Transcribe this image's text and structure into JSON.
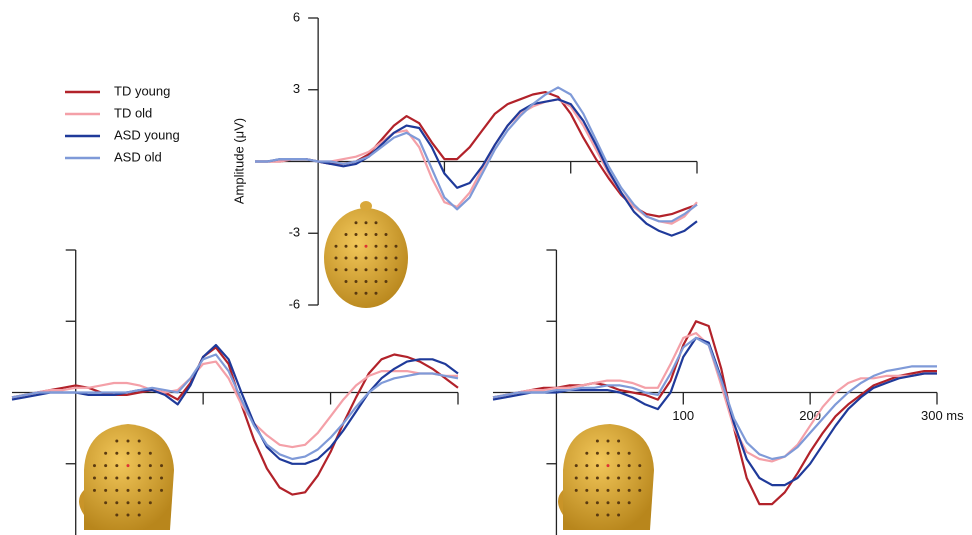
{
  "chart_data": [
    {
      "type": "line",
      "y_label": "Amplitude (μV)",
      "legend": "top-left",
      "x": [
        -50,
        -40,
        -30,
        -20,
        -10,
        0,
        10,
        20,
        30,
        40,
        50,
        60,
        70,
        80,
        90,
        100,
        110,
        120,
        130,
        140,
        150,
        160,
        170,
        180,
        190,
        200,
        210,
        220,
        230,
        240,
        250,
        260,
        270,
        280,
        290,
        300
      ],
      "xlim": [
        -50,
        300
      ],
      "ylim": [
        -6,
        6
      ],
      "xticks": [
        100,
        200,
        300
      ],
      "yticks": [
        -6,
        -3,
        3,
        6
      ],
      "show_x_tick_labels": false,
      "show_y_tick_labels": true,
      "series": [
        {
          "name": "TD young",
          "color": "#b2222a",
          "values": [
            0,
            0,
            0,
            0.1,
            0.1,
            0,
            -0.1,
            -0.1,
            0,
            0.3,
            0.9,
            1.5,
            1.9,
            1.6,
            0.8,
            0.1,
            0.1,
            0.6,
            1.3,
            2.0,
            2.4,
            2.6,
            2.8,
            2.9,
            2.7,
            2.0,
            1.0,
            0.1,
            -0.7,
            -1.4,
            -1.9,
            -2.2,
            -2.3,
            -2.2,
            -2.0,
            -1.8
          ]
        },
        {
          "name": "TD old",
          "color": "#f4a0a8",
          "values": [
            0,
            0,
            0,
            0.1,
            0.1,
            0,
            0,
            0.1,
            0.2,
            0.4,
            0.8,
            1.2,
            1.3,
            0.6,
            -0.7,
            -1.7,
            -1.9,
            -1.3,
            -0.3,
            0.7,
            1.5,
            2.0,
            2.3,
            2.5,
            2.6,
            2.3,
            1.5,
            0.5,
            -0.5,
            -1.3,
            -1.9,
            -2.3,
            -2.5,
            -2.6,
            -2.3,
            -1.7
          ]
        },
        {
          "name": "ASD young",
          "color": "#1f3a9a",
          "values": [
            0,
            0,
            0.1,
            0.1,
            0.1,
            0,
            -0.1,
            -0.2,
            -0.1,
            0.2,
            0.7,
            1.2,
            1.5,
            1.4,
            0.6,
            -0.5,
            -1.1,
            -0.9,
            -0.2,
            0.7,
            1.5,
            2.1,
            2.4,
            2.5,
            2.6,
            2.4,
            1.7,
            0.7,
            -0.4,
            -1.3,
            -2.1,
            -2.6,
            -2.9,
            -3.1,
            -2.9,
            -2.5
          ]
        },
        {
          "name": "ASD old",
          "color": "#7f9ad8",
          "values": [
            0,
            0,
            0.1,
            0.1,
            0.1,
            0,
            0,
            -0.1,
            0,
            0.2,
            0.6,
            1.0,
            1.2,
            0.9,
            -0.3,
            -1.5,
            -2.0,
            -1.5,
            -0.5,
            0.5,
            1.3,
            1.9,
            2.4,
            2.8,
            3.1,
            2.8,
            2.0,
            0.9,
            -0.2,
            -1.1,
            -1.8,
            -2.3,
            -2.5,
            -2.5,
            -2.2,
            -1.8
          ]
        }
      ]
    },
    {
      "type": "line",
      "x": [
        -50,
        -40,
        -30,
        -20,
        -10,
        0,
        10,
        20,
        30,
        40,
        50,
        60,
        70,
        80,
        90,
        100,
        110,
        120,
        130,
        140,
        150,
        160,
        170,
        180,
        190,
        200,
        210,
        220,
        230,
        240,
        250,
        260,
        270,
        280,
        290,
        300
      ],
      "xlim": [
        -50,
        300
      ],
      "ylim": [
        -6,
        6
      ],
      "xticks": [
        100,
        200,
        300
      ],
      "yticks": [
        -3,
        3,
        6
      ],
      "show_x_tick_labels": false,
      "show_y_tick_labels": false,
      "series": [
        {
          "color": "#b2222a",
          "values": [
            -0.2,
            -0.1,
            0,
            0.1,
            0.2,
            0.3,
            0.2,
            0,
            -0.1,
            -0.1,
            0,
            0.1,
            0,
            -0.3,
            0.4,
            1.5,
            1.9,
            1.2,
            -0.5,
            -2.0,
            -3.2,
            -4.0,
            -4.3,
            -4.2,
            -3.5,
            -2.5,
            -1.3,
            -0.2,
            0.8,
            1.4,
            1.6,
            1.5,
            1.3,
            1.0,
            0.6,
            0.2
          ]
        },
        {
          "color": "#f4a0a8",
          "values": [
            -0.2,
            -0.1,
            0,
            0.1,
            0.1,
            0.2,
            0.2,
            0.3,
            0.4,
            0.4,
            0.3,
            0.1,
            0,
            0.1,
            0.6,
            1.2,
            1.3,
            0.6,
            -0.5,
            -1.3,
            -1.8,
            -2.2,
            -2.3,
            -2.2,
            -1.7,
            -1.0,
            -0.3,
            0.3,
            0.7,
            0.9,
            0.9,
            0.9,
            0.8,
            0.8,
            0.7,
            0.7
          ]
        },
        {
          "color": "#1f3a9a",
          "values": [
            -0.3,
            -0.2,
            -0.1,
            0,
            0,
            0,
            -0.1,
            -0.1,
            -0.1,
            0,
            0.1,
            0.1,
            -0.1,
            -0.5,
            0.3,
            1.5,
            2.0,
            1.4,
            0,
            -1.3,
            -2.3,
            -2.8,
            -3.0,
            -3.0,
            -2.8,
            -2.3,
            -1.6,
            -0.8,
            0,
            0.6,
            1.0,
            1.3,
            1.4,
            1.4,
            1.2,
            0.8
          ]
        },
        {
          "color": "#7f9ad8",
          "values": [
            -0.2,
            -0.1,
            0,
            0,
            0,
            0,
            0,
            0,
            0,
            0,
            0.1,
            0.2,
            0.1,
            0,
            0.6,
            1.4,
            1.6,
            0.9,
            -0.3,
            -1.4,
            -2.2,
            -2.6,
            -2.8,
            -2.7,
            -2.4,
            -1.9,
            -1.3,
            -0.6,
            0,
            0.4,
            0.6,
            0.7,
            0.8,
            0.8,
            0.7,
            0.6
          ]
        }
      ]
    },
    {
      "type": "line",
      "x": [
        -50,
        -40,
        -30,
        -20,
        -10,
        0,
        10,
        20,
        30,
        40,
        50,
        60,
        70,
        80,
        90,
        100,
        110,
        120,
        130,
        140,
        150,
        160,
        170,
        180,
        190,
        200,
        210,
        220,
        230,
        240,
        250,
        260,
        270,
        280,
        290,
        300
      ],
      "xlim": [
        -50,
        300
      ],
      "ylim": [
        -6,
        6
      ],
      "xticks": [
        100,
        200,
        {
          "value": 300,
          "label": "300 ms"
        }
      ],
      "yticks": [
        -3,
        3,
        6
      ],
      "show_x_tick_labels": true,
      "show_y_tick_labels": false,
      "series": [
        {
          "color": "#b2222a",
          "values": [
            -0.2,
            -0.1,
            0,
            0.1,
            0.2,
            0.2,
            0.3,
            0.3,
            0.4,
            0.3,
            0.1,
            0,
            -0.1,
            -0.3,
            0.5,
            2.0,
            3.0,
            2.8,
            1.0,
            -1.5,
            -3.6,
            -4.7,
            -4.7,
            -4.2,
            -3.4,
            -2.5,
            -1.7,
            -1.0,
            -0.5,
            -0.1,
            0.3,
            0.5,
            0.7,
            0.8,
            0.9,
            0.9
          ]
        },
        {
          "color": "#f4a0a8",
          "values": [
            -0.2,
            -0.1,
            0,
            0.1,
            0.1,
            0.2,
            0.2,
            0.3,
            0.4,
            0.5,
            0.5,
            0.4,
            0.2,
            0.2,
            1.2,
            2.3,
            2.5,
            2.0,
            0.3,
            -1.5,
            -2.5,
            -2.8,
            -2.9,
            -2.7,
            -2.2,
            -1.4,
            -0.6,
            0,
            0.4,
            0.6,
            0.6,
            0.7,
            0.7,
            0.7,
            0.8,
            0.8
          ]
        },
        {
          "color": "#1f3a9a",
          "values": [
            -0.3,
            -0.2,
            -0.1,
            0,
            0,
            0,
            0.1,
            0.1,
            0.1,
            0.1,
            0,
            -0.2,
            -0.5,
            -0.7,
            0,
            1.5,
            2.3,
            2.1,
            0.6,
            -1.3,
            -2.8,
            -3.6,
            -3.9,
            -3.9,
            -3.6,
            -3.0,
            -2.2,
            -1.4,
            -0.7,
            -0.2,
            0.2,
            0.4,
            0.6,
            0.7,
            0.8,
            0.8
          ]
        },
        {
          "color": "#7f9ad8",
          "values": [
            -0.2,
            -0.1,
            0,
            0,
            0,
            0.1,
            0.1,
            0.2,
            0.2,
            0.3,
            0.3,
            0.2,
            0,
            -0.1,
            0.8,
            1.9,
            2.3,
            2.0,
            0.5,
            -1.1,
            -2.1,
            -2.6,
            -2.8,
            -2.7,
            -2.3,
            -1.7,
            -1.1,
            -0.5,
            0,
            0.4,
            0.7,
            0.9,
            1.0,
            1.1,
            1.1,
            1.1
          ]
        }
      ]
    }
  ]
}
